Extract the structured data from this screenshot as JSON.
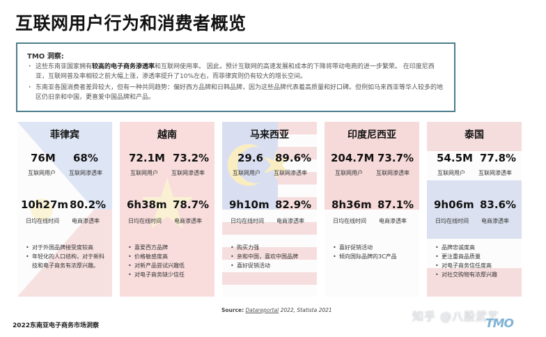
{
  "page": {
    "title": "互联网用户行为和消费者概览"
  },
  "insight": {
    "heading": "TMO 洞察:",
    "bullet1_pre": "这些东南亚国家拥有",
    "bullet1_bold": "较高的电子商务渗透率",
    "bullet1_post": "和互联网使用率。 因此，预计互联网的高速发展和成本的下降将带动电商的进一步繁荣。 在印度尼西亚，互联网普及率相较之前大幅上涨，渗透率提升了10%左右，而菲律宾则仍有较大的增长空间。",
    "bullet2": "东南亚各国消费者差异较大，但有一种共同趋势：偏好西方品牌和日韩品牌，因为这些品牌代表着高质量和好口碑。但例如马来西亚等华人较多的地区仍旧亲和中国，更喜爱中国品牌和产品。"
  },
  "labels": {
    "internet_users": "互联网用户",
    "internet_penetration": "互联网渗透率",
    "daily_online": "日均在线时间",
    "ecommerce_penetration": "电商渗透率"
  },
  "cards": [
    {
      "country": "菲律宾",
      "users": "76M",
      "internet_rate": "68%",
      "online_time": "10h27m",
      "ecom_rate": "80.2%",
      "notes": [
        "对于外国品牌接受度较高",
        "年轻化的人口结构，对于新科技和电子商务有浓厚兴趣。"
      ]
    },
    {
      "country": "越南",
      "users": "72.1M",
      "internet_rate": "73.2%",
      "online_time": "6h38m",
      "ecom_rate": "78.7%",
      "notes": [
        "喜爱西方品牌",
        "价格敏感度高",
        "对新产品尝试兴趣低",
        "对电子商务缺少信任"
      ]
    },
    {
      "country": "马来西亚",
      "users": "29.6",
      "internet_rate": "89.6%",
      "online_time": "9h10m",
      "ecom_rate": "82.9%",
      "notes": [
        "购买力强",
        "亲和中国，喜欢中国品牌",
        "喜好促销活动"
      ]
    },
    {
      "country": "印度尼西亚",
      "users": "204.7M",
      "internet_rate": "73.7%",
      "online_time": "8h36m",
      "ecom_rate": "87.1%",
      "notes": [
        "喜好促销活动",
        "倾向国际品牌的3C产品"
      ]
    },
    {
      "country": "泰国",
      "users": "54.5M",
      "internet_rate": "77.8%",
      "online_time": "9h06m",
      "ecom_rate": "83.6%",
      "notes": [
        "品牌忠诚度高",
        "更注重商品质量",
        "对电子商务信任度高",
        "对社交购物有浓厚兴趣"
      ]
    }
  ],
  "source": {
    "label": "Source:",
    "link": "Datareportal",
    "rest": " 2022, Statista 2021"
  },
  "footer": "2022东南亚电子商务市场洞察",
  "watermark": "知乎 @八股武艺",
  "logo": "TMO",
  "colors": {
    "insight_border": "#4a7c8c",
    "flag_red": "#c8202c",
    "flag_blue": "#1f3f8f",
    "flag_yellow": "#f0c419"
  }
}
